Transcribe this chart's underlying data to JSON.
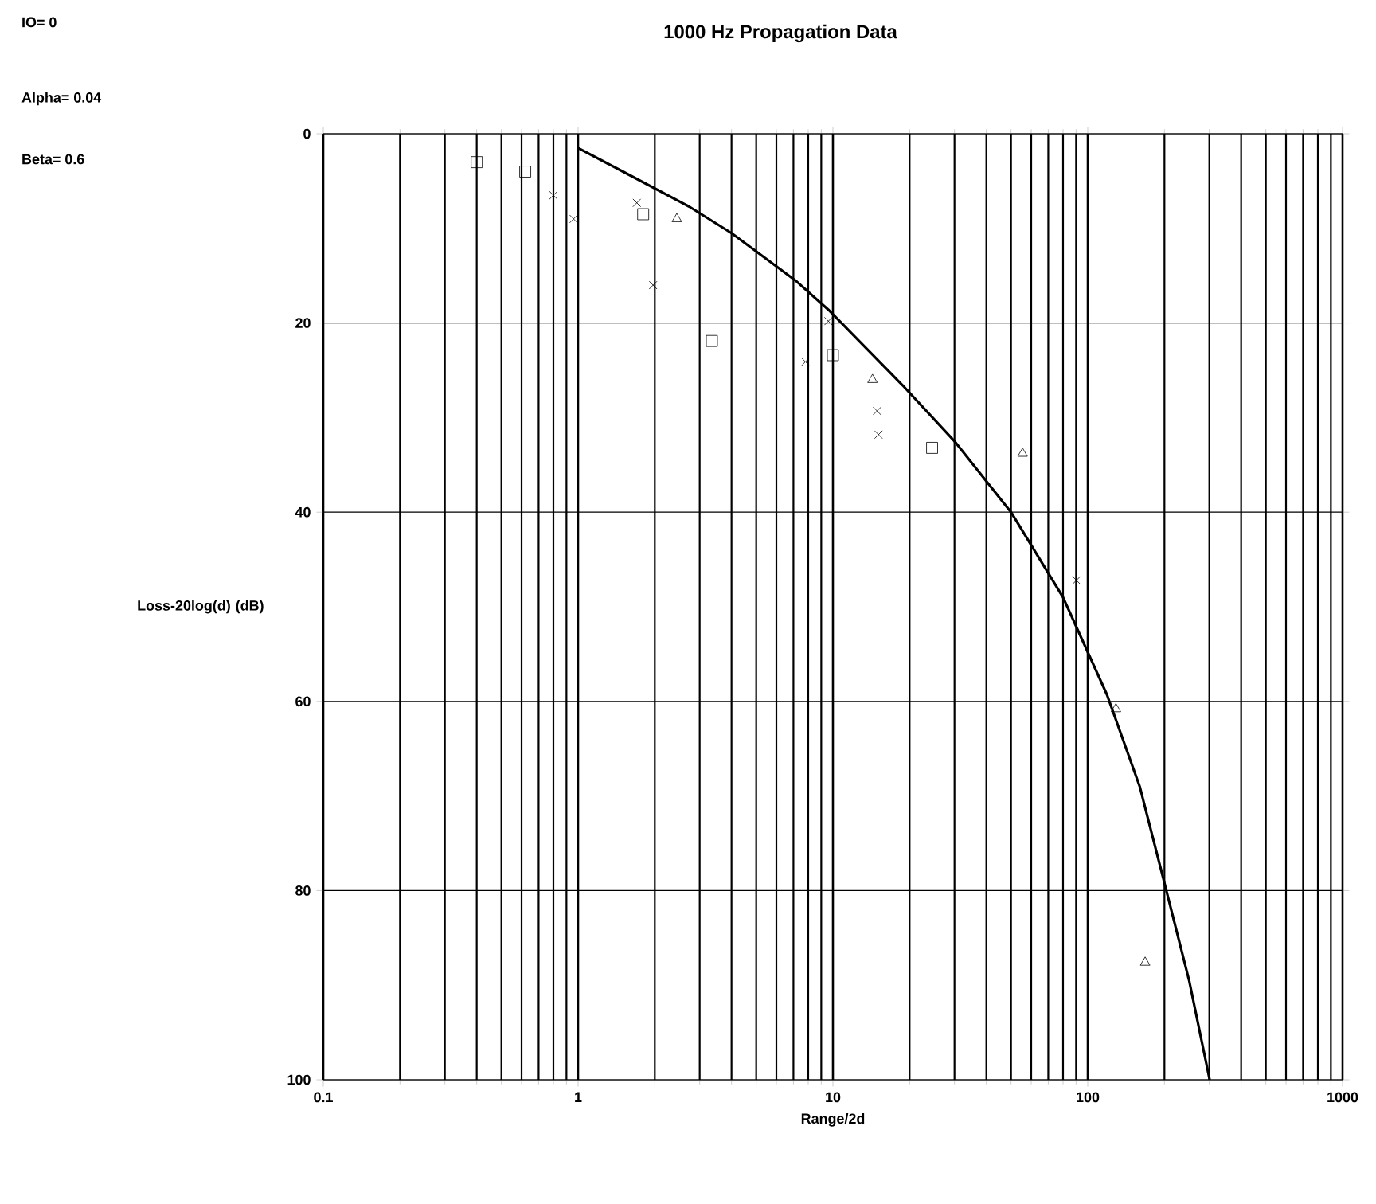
{
  "chart_data": {
    "type": "scatter",
    "title": "1000 Hz Propagation Data",
    "xlabel": "Range/2d",
    "ylabel": "Loss-20log(d) (dB)",
    "annotations": [
      "IO= 0",
      "Alpha= 0.04",
      "Beta= 0.6"
    ],
    "log": "x",
    "grid": true,
    "xlim": [
      0.1,
      1000
    ],
    "xticks": [
      0.1,
      1,
      10,
      100,
      1000
    ],
    "ylim": [
      100,
      0
    ],
    "yticks": [
      0,
      20,
      40,
      60,
      80,
      100
    ],
    "series": [
      {
        "marker": "square",
        "color": "#000000",
        "x": [
          0.4,
          0.62,
          1.8,
          3.35,
          10,
          24.5
        ],
        "values": [
          3,
          4,
          8.5,
          21.9,
          23.4,
          33.2
        ]
      },
      {
        "marker": "cross",
        "color": "#000000",
        "x": [
          0.8,
          0.96,
          1.7,
          1.97,
          7.8,
          9.6,
          14.9,
          15.1,
          90.3
        ],
        "values": [
          6.5,
          9,
          7.3,
          16,
          24.1,
          19.8,
          29.3,
          31.8,
          47.2
        ]
      },
      {
        "marker": "triangle",
        "color": "#000000",
        "x": [
          2.44,
          14.3,
          55.5,
          129,
          168
        ],
        "values": [
          9,
          26,
          33.8,
          60.8,
          87.6
        ]
      },
      {
        "type": "line",
        "marker": "none",
        "line_style": "solid",
        "color": "#000000",
        "x": [
          1,
          1.5,
          2.73,
          4,
          7.2,
          9.6,
          18.8,
          30,
          50,
          80,
          119,
          160,
          200,
          250,
          301
        ],
        "values": [
          1.5,
          4,
          7.7,
          10.5,
          15.6,
          18.6,
          26.6,
          32.5,
          40,
          49,
          59.3,
          69,
          79.2,
          89.5,
          100
        ]
      }
    ]
  }
}
